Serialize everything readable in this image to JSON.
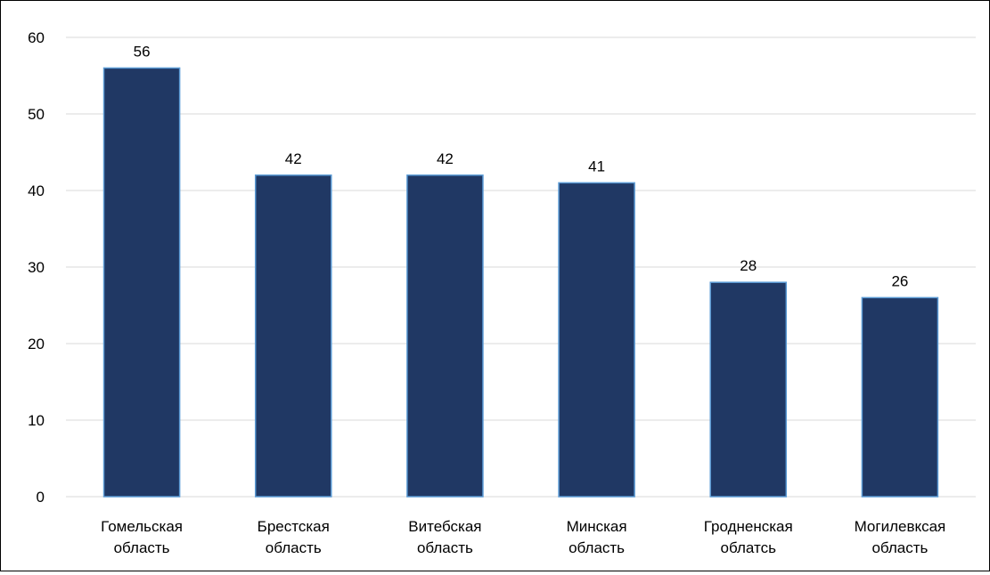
{
  "chart_data": {
    "type": "bar",
    "categories": [
      [
        "Гомельская",
        "область"
      ],
      [
        "Брестская",
        "область"
      ],
      [
        "Витебская",
        "область"
      ],
      [
        "Минская",
        "область"
      ],
      [
        "Гродненская",
        "облатсь"
      ],
      [
        "Могилевксая",
        "область"
      ]
    ],
    "values": [
      56,
      42,
      42,
      41,
      28,
      26
    ],
    "data_labels": [
      "56",
      "42",
      "42",
      "41",
      "28",
      "26"
    ],
    "title": "",
    "xlabel": "",
    "ylabel": "",
    "ylim": [
      0,
      60
    ],
    "yticks": [
      0,
      10,
      20,
      30,
      40,
      50,
      60
    ],
    "ytick_labels": [
      "0",
      "10",
      "20",
      "30",
      "40",
      "50",
      "60"
    ],
    "grid": true,
    "legend": "none",
    "colors": {
      "bar_fill": "#203864",
      "bar_edge": "#5b9bd5",
      "grid": "#d9d9d9",
      "baseline": "#d9d9d9",
      "text": "#000000"
    }
  }
}
